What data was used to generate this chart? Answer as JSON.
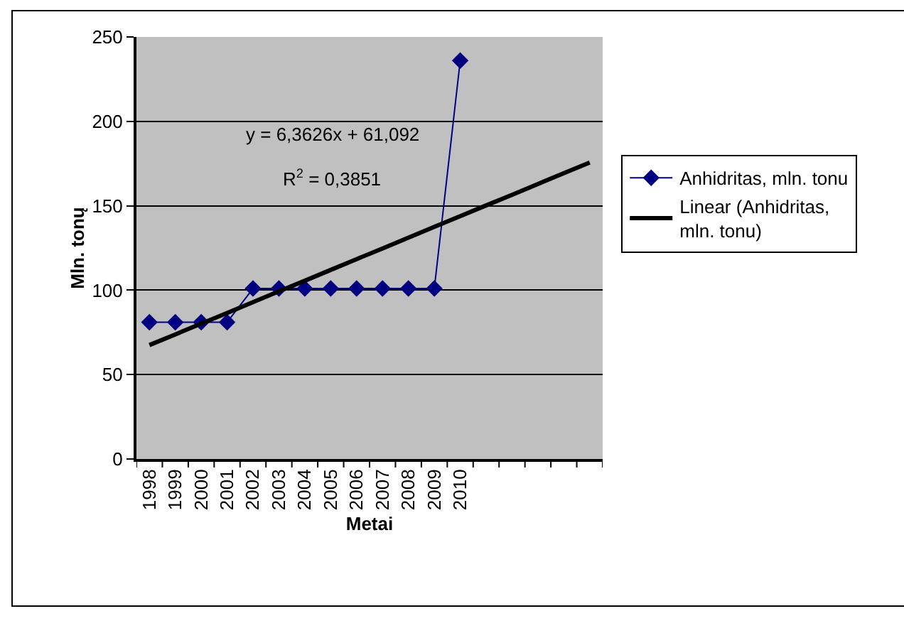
{
  "chart_data": {
    "type": "line",
    "xlabel": "Metai",
    "ylabel": "Mln. tonų",
    "categories": [
      "1998",
      "1999",
      "2000",
      "2001",
      "2002",
      "2003",
      "2004",
      "2005",
      "2006",
      "2007",
      "2008",
      "2009",
      "2010",
      null,
      null,
      null,
      null,
      null
    ],
    "series": [
      {
        "name": "Anhidritas, mln. tonu",
        "color": "#000080",
        "values": [
          81,
          81,
          81,
          81,
          101,
          101,
          101,
          101,
          101,
          101,
          101,
          101,
          236,
          null,
          null,
          null,
          null,
          null
        ]
      },
      {
        "name": "Linear (Anhidritas, mln. tonu)",
        "type": "line",
        "marker": "none",
        "color": "#000000",
        "values": [
          67.5,
          73.8,
          80.2,
          86.5,
          92.9,
          99.3,
          105.6,
          112.0,
          118.4,
          124.7,
          131.1,
          137.5,
          143.8,
          150.2,
          156.5,
          162.9,
          169.3,
          175.6
        ]
      }
    ],
    "ylim": [
      0,
      250
    ],
    "yticks": [
      0,
      50,
      100,
      150,
      200,
      250
    ],
    "grid": "y",
    "legend": "right",
    "marker": "diamond",
    "line_style": "solid",
    "annotations": [
      "y = 6,3626x + 61,092",
      "R$^{2}$ = 0,3851"
    ]
  }
}
